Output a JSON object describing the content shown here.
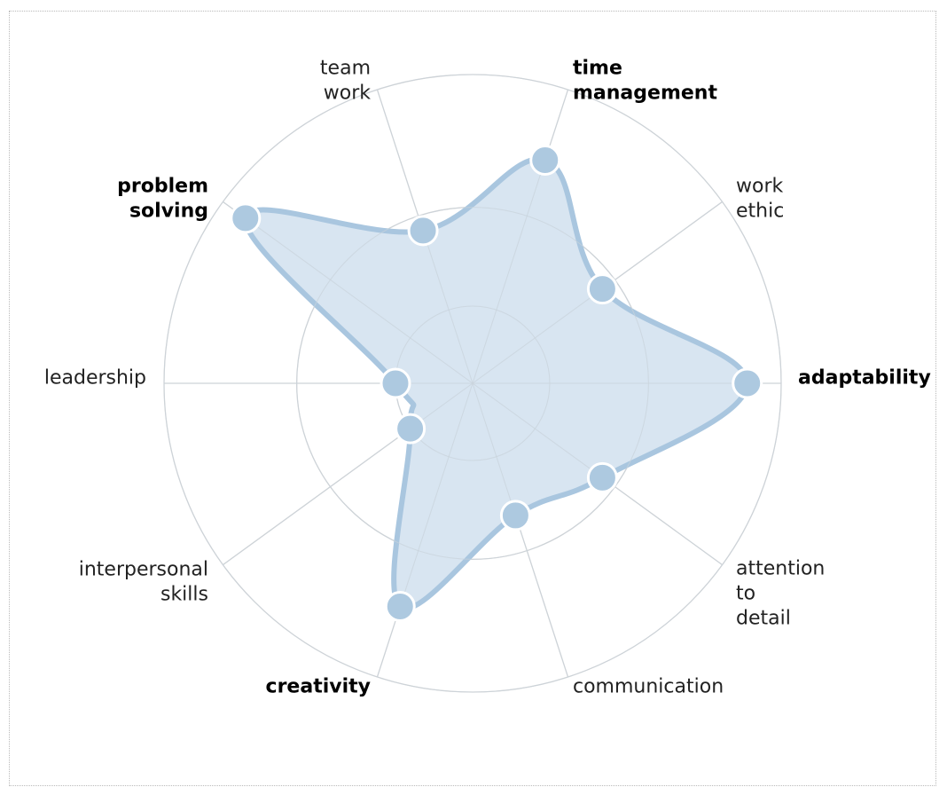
{
  "chart_data": {
    "type": "radar",
    "title": "",
    "rmax": 100,
    "rings": [
      25,
      57,
      100
    ],
    "axes": [
      {
        "label": [
          "time",
          "management"
        ],
        "value": 76,
        "bold": true
      },
      {
        "label": [
          "work",
          "ethic"
        ],
        "value": 52,
        "bold": false
      },
      {
        "label": [
          "adaptability"
        ],
        "value": 89,
        "bold": true
      },
      {
        "label": [
          "attention",
          "to",
          "detail"
        ],
        "value": 52,
        "bold": false
      },
      {
        "label": [
          "communication"
        ],
        "value": 45,
        "bold": false
      },
      {
        "label": [
          "creativity"
        ],
        "value": 76,
        "bold": true
      },
      {
        "label": [
          "interpersonal",
          "skills"
        ],
        "value": 25,
        "bold": false
      },
      {
        "label": [
          "leadership"
        ],
        "value": 25,
        "bold": false
      },
      {
        "label": [
          "problem",
          "solving"
        ],
        "value": 91,
        "bold": true
      },
      {
        "label": [
          "team",
          "work"
        ],
        "value": 52,
        "bold": false
      }
    ],
    "colors": {
      "fill": "#d6e4f0",
      "stroke": "#a9c6df",
      "marker": "#adc9e0",
      "grid": "#d4d4d4"
    }
  }
}
